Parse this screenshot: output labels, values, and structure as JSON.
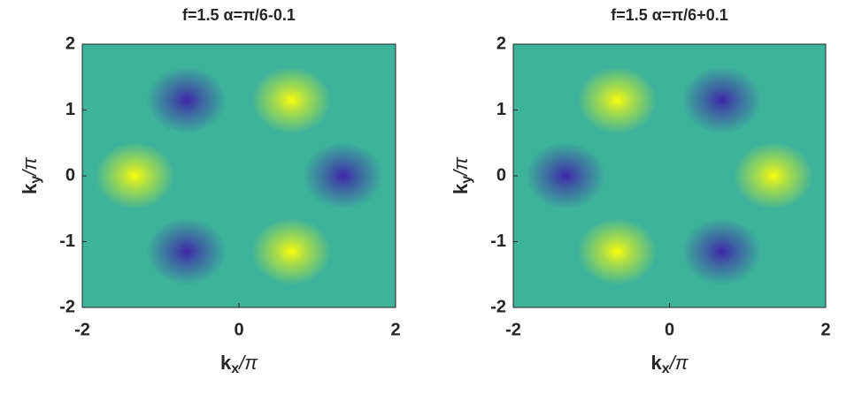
{
  "chart_data": [
    {
      "type": "heatmap",
      "title": "f=1.5 α=π/6-0.1",
      "xlabel": [
        "k",
        "x",
        "/π"
      ],
      "ylabel": [
        "k",
        "y",
        "/π"
      ],
      "xlim": [
        -2,
        2
      ],
      "ylim": [
        -2,
        2
      ],
      "xticks": [
        -2,
        0,
        2
      ],
      "yticks": [
        -2,
        -1,
        0,
        1,
        2
      ],
      "mid_color": "#3db39b",
      "high_color": "#f9fb0e",
      "low_color": "#3e26a8",
      "x": [
        -0.67,
        0.67,
        -1.33,
        1.33,
        -0.67,
        0.67
      ],
      "y": [
        1.15,
        1.15,
        0,
        0,
        -1.15,
        -1.15
      ],
      "values": [
        -1,
        1,
        1,
        -1,
        -1,
        1
      ]
    },
    {
      "type": "heatmap",
      "title": "f=1.5 α=π/6+0.1",
      "xlabel": [
        "k",
        "x",
        "/π"
      ],
      "ylabel": [
        "k",
        "y",
        "/π"
      ],
      "xlim": [
        -2,
        2
      ],
      "ylim": [
        -2,
        2
      ],
      "xticks": [
        -2,
        0,
        2
      ],
      "yticks": [
        -2,
        -1,
        0,
        1,
        2
      ],
      "mid_color": "#3db39b",
      "high_color": "#f9fb0e",
      "low_color": "#3e26a8",
      "x": [
        -0.67,
        0.67,
        -1.33,
        1.33,
        -0.67,
        0.67
      ],
      "y": [
        1.15,
        1.15,
        0,
        0,
        -1.15,
        -1.15
      ],
      "values": [
        1,
        -1,
        -1,
        1,
        1,
        -1
      ]
    }
  ]
}
